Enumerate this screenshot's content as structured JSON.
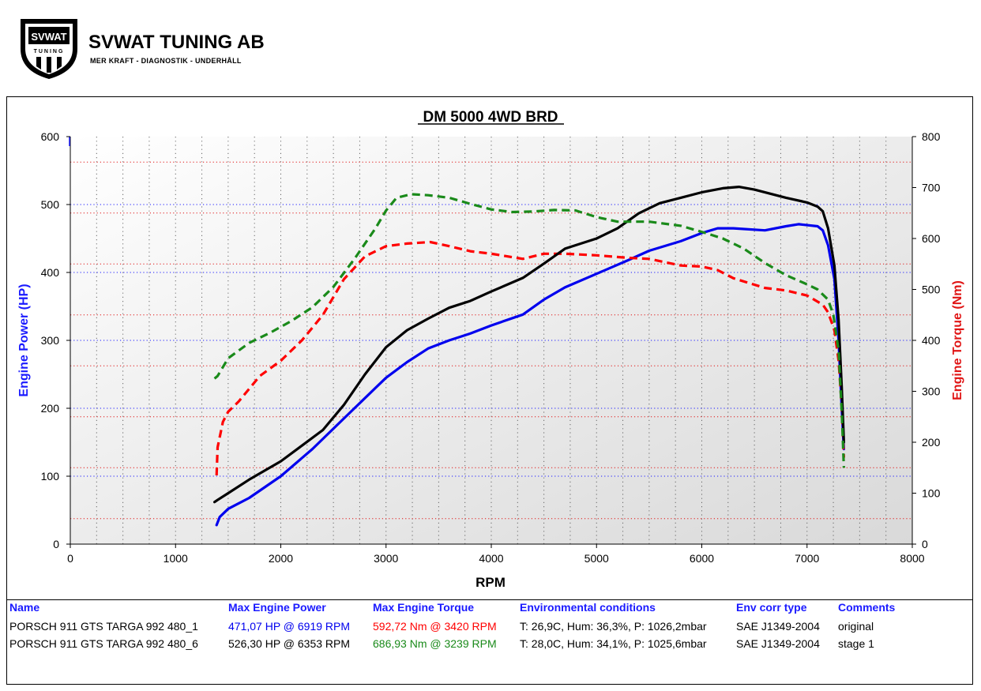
{
  "logo": {
    "name": "SVWAT TUNING AB",
    "tagline": "MER KRAFT - DIAGNOSTIK - UNDERHÅLL",
    "badge_top": "SVWAT",
    "badge_bottom": "TUNING"
  },
  "colors": {
    "power_axis": "#1a1aff",
    "torque_axis": "#e01414",
    "original_power": "#0000ee",
    "original_torque": "#ff0000",
    "stage1_power": "#000000",
    "stage1_torque": "#1a8a1a"
  },
  "chart_data": {
    "type": "line",
    "title": "DM 5000 4WD BRD",
    "xlabel": "RPM",
    "ylabel": "Engine Power (HP)",
    "y2label": "Engine Torque (Nm)",
    "xlim": [
      0,
      8000
    ],
    "ylim": [
      0,
      600
    ],
    "y2lim": [
      0,
      800
    ],
    "x_ticks": [
      0,
      1000,
      2000,
      3000,
      4000,
      5000,
      6000,
      7000,
      8000
    ],
    "y_ticks": [
      0,
      100,
      200,
      300,
      400,
      500,
      600
    ],
    "y2_ticks": [
      0,
      100,
      200,
      300,
      400,
      500,
      600,
      700,
      800
    ],
    "grid": true,
    "series": [
      {
        "name": "PORSCH 911 GTS TARGA 992 480_1",
        "kind": "power",
        "axis": "left",
        "color": "#0000ee",
        "style": "solid",
        "points": [
          [
            1390,
            28
          ],
          [
            1420,
            40
          ],
          [
            1500,
            52
          ],
          [
            1700,
            68
          ],
          [
            2000,
            100
          ],
          [
            2300,
            140
          ],
          [
            2600,
            185
          ],
          [
            2900,
            230
          ],
          [
            3000,
            245
          ],
          [
            3200,
            268
          ],
          [
            3400,
            288
          ],
          [
            3600,
            300
          ],
          [
            3800,
            310
          ],
          [
            4000,
            322
          ],
          [
            4300,
            338
          ],
          [
            4500,
            360
          ],
          [
            4700,
            378
          ],
          [
            5000,
            398
          ],
          [
            5300,
            418
          ],
          [
            5500,
            432
          ],
          [
            5800,
            446
          ],
          [
            6000,
            458
          ],
          [
            6150,
            465
          ],
          [
            6300,
            465
          ],
          [
            6600,
            462
          ],
          [
            6800,
            468
          ],
          [
            6919,
            471
          ],
          [
            7100,
            468
          ],
          [
            7150,
            462
          ],
          [
            7200,
            440
          ],
          [
            7260,
            390
          ],
          [
            7300,
            300
          ],
          [
            7330,
            200
          ],
          [
            7350,
            140
          ]
        ]
      },
      {
        "name": "PORSCH 911 GTS TARGA 992 480_1",
        "kind": "torque",
        "axis": "right",
        "color": "#ff0000",
        "style": "dashed",
        "points": [
          [
            1390,
            135
          ],
          [
            1400,
            190
          ],
          [
            1450,
            240
          ],
          [
            1500,
            260
          ],
          [
            1600,
            280
          ],
          [
            1800,
            330
          ],
          [
            2000,
            360
          ],
          [
            2200,
            400
          ],
          [
            2400,
            450
          ],
          [
            2600,
            520
          ],
          [
            2800,
            565
          ],
          [
            3000,
            585
          ],
          [
            3200,
            590
          ],
          [
            3420,
            593
          ],
          [
            3600,
            585
          ],
          [
            3800,
            575
          ],
          [
            4000,
            570
          ],
          [
            4300,
            560
          ],
          [
            4500,
            570
          ],
          [
            4700,
            570
          ],
          [
            5000,
            567
          ],
          [
            5300,
            562
          ],
          [
            5500,
            560
          ],
          [
            5800,
            547
          ],
          [
            6000,
            545
          ],
          [
            6150,
            538
          ],
          [
            6300,
            522
          ],
          [
            6600,
            503
          ],
          [
            6800,
            498
          ],
          [
            7000,
            488
          ],
          [
            7150,
            470
          ],
          [
            7200,
            455
          ],
          [
            7260,
            420
          ],
          [
            7300,
            360
          ],
          [
            7330,
            270
          ],
          [
            7350,
            170
          ]
        ]
      },
      {
        "name": "PORSCH 911 GTS TARGA 992 480_6",
        "kind": "power",
        "axis": "left",
        "color": "#000000",
        "style": "solid",
        "points": [
          [
            1370,
            62
          ],
          [
            1400,
            65
          ],
          [
            1500,
            75
          ],
          [
            1700,
            95
          ],
          [
            2000,
            122
          ],
          [
            2200,
            145
          ],
          [
            2400,
            168
          ],
          [
            2600,
            205
          ],
          [
            2800,
            250
          ],
          [
            3000,
            290
          ],
          [
            3200,
            315
          ],
          [
            3400,
            332
          ],
          [
            3600,
            348
          ],
          [
            3800,
            358
          ],
          [
            4000,
            372
          ],
          [
            4300,
            392
          ],
          [
            4500,
            413
          ],
          [
            4700,
            435
          ],
          [
            5000,
            450
          ],
          [
            5200,
            465
          ],
          [
            5400,
            487
          ],
          [
            5600,
            502
          ],
          [
            5800,
            510
          ],
          [
            6000,
            518
          ],
          [
            6200,
            524
          ],
          [
            6353,
            526
          ],
          [
            6500,
            522
          ],
          [
            6800,
            510
          ],
          [
            7000,
            503
          ],
          [
            7100,
            497
          ],
          [
            7150,
            490
          ],
          [
            7200,
            465
          ],
          [
            7260,
            410
          ],
          [
            7300,
            330
          ],
          [
            7330,
            230
          ],
          [
            7350,
            150
          ]
        ]
      },
      {
        "name": "PORSCH 911 GTS TARGA 992 480_6",
        "kind": "torque",
        "axis": "right",
        "color": "#1a8a1a",
        "style": "dashed",
        "points": [
          [
            1370,
            325
          ],
          [
            1400,
            330
          ],
          [
            1500,
            365
          ],
          [
            1700,
            395
          ],
          [
            1900,
            415
          ],
          [
            2100,
            438
          ],
          [
            2300,
            465
          ],
          [
            2500,
            505
          ],
          [
            2700,
            560
          ],
          [
            2900,
            620
          ],
          [
            3000,
            655
          ],
          [
            3100,
            680
          ],
          [
            3239,
            687
          ],
          [
            3400,
            685
          ],
          [
            3600,
            680
          ],
          [
            3800,
            668
          ],
          [
            4000,
            657
          ],
          [
            4200,
            652
          ],
          [
            4400,
            653
          ],
          [
            4600,
            656
          ],
          [
            4800,
            655
          ],
          [
            5000,
            642
          ],
          [
            5200,
            633
          ],
          [
            5500,
            633
          ],
          [
            5800,
            625
          ],
          [
            6000,
            613
          ],
          [
            6200,
            600
          ],
          [
            6400,
            580
          ],
          [
            6600,
            552
          ],
          [
            6800,
            528
          ],
          [
            7000,
            510
          ],
          [
            7100,
            500
          ],
          [
            7200,
            480
          ],
          [
            7250,
            450
          ],
          [
            7300,
            380
          ],
          [
            7330,
            260
          ],
          [
            7350,
            150
          ]
        ]
      }
    ]
  },
  "table": {
    "headers": {
      "name": "Name",
      "max_power": "Max Engine Power",
      "max_torque": "Max Engine Torque",
      "env": "Environmental conditions",
      "env_corr": "Env corr type",
      "comments": "Comments"
    },
    "rows": [
      {
        "name": "PORSCH 911 GTS TARGA 992 480_1",
        "max_power": "471,07 HP @ 6919 RPM",
        "max_torque": "592,72 Nm @ 3420 RPM",
        "env": "T: 26,9C, Hum: 36,3%, P: 1026,2mbar",
        "env_corr": "SAE J1349-2004",
        "comments": "original"
      },
      {
        "name": "PORSCH 911 GTS TARGA 992 480_6",
        "max_power": "526,30 HP @ 6353 RPM",
        "max_torque": "686,93 Nm @ 3239 RPM",
        "env": "T: 28,0C, Hum: 34,1%, P: 1025,6mbar",
        "env_corr": "SAE J1349-2004",
        "comments": "stage 1"
      }
    ]
  }
}
